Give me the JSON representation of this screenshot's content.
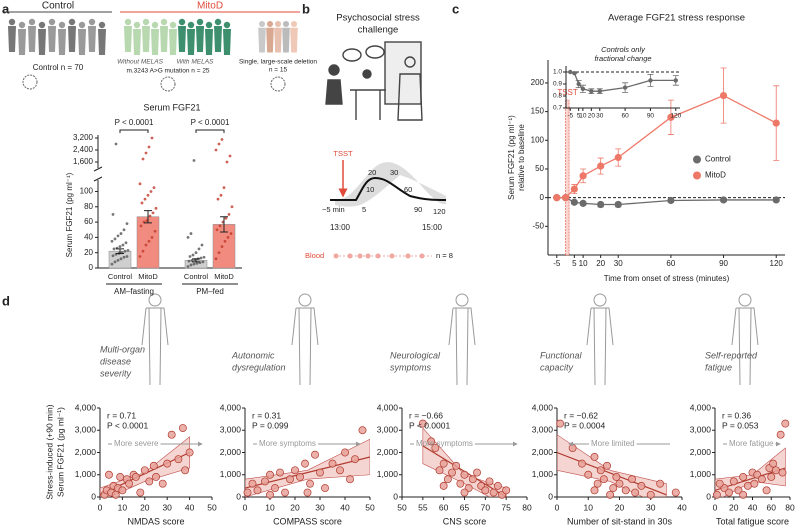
{
  "panel_labels": [
    "a",
    "b",
    "c",
    "d"
  ],
  "cohorts": {
    "control_header": "Control",
    "mitod_header": "MitoD",
    "control_n": "Control n = 70",
    "melas_without": "Without MELAS",
    "melas_with": "With MELAS",
    "mutation": "m.3243 A>G mutation n = 25",
    "deletion_lines": [
      "Single, large-scale deletion",
      "n = 15"
    ]
  },
  "stress_test": {
    "title_lines": [
      "Psychosocial stress",
      "challenge"
    ],
    "event": "TSST",
    "time_labels": [
      "−5 min",
      "5",
      "10",
      "20",
      "30",
      "60",
      "90",
      "120"
    ],
    "start": "13:00",
    "end": "15:00",
    "sample_row": "Blood",
    "n": "n = 8"
  },
  "chart_data": [
    {
      "type": "bar",
      "title": "Serum FGF21",
      "ylabel": "Serum FGF21 (pg ml⁻¹)",
      "categories": [
        "Control",
        "MitoD",
        "Control",
        "MitoD"
      ],
      "groups": [
        "AM–fasting",
        "PM–fed"
      ],
      "values": [
        22,
        67,
        10,
        57
      ],
      "errors": [
        3,
        8,
        2,
        10
      ],
      "colors": [
        "#cfcfcf",
        "#f28b7f",
        "#cfcfcf",
        "#f28b7f"
      ],
      "point_colors": [
        "#555555",
        "#c0392b",
        "#555555",
        "#c0392b"
      ],
      "points": [
        [
          5,
          8,
          10,
          12,
          14,
          15,
          16,
          18,
          19,
          20,
          22,
          23,
          25,
          26,
          28,
          30,
          33,
          35,
          38,
          42,
          45,
          50,
          58,
          70,
          2800
        ],
        [
          15,
          22,
          30,
          35,
          40,
          48,
          55,
          60,
          62,
          68,
          72,
          78,
          85,
          90,
          95,
          100,
          105,
          110,
          1800,
          2200,
          2600,
          3200
        ],
        [
          2,
          4,
          5,
          6,
          7,
          8,
          9,
          10,
          11,
          12,
          13,
          14,
          15,
          17,
          20,
          25,
          30,
          40,
          45,
          1700
        ],
        [
          12,
          20,
          28,
          35,
          40,
          45,
          50,
          55,
          60,
          65,
          70,
          80,
          90,
          95,
          105,
          1600,
          2000,
          2400,
          2800,
          3100
        ]
      ],
      "p_labels": [
        "P < 0.0001",
        "P < 0.0001"
      ],
      "ylim": [
        0,
        115
      ],
      "yticks": [
        0,
        20,
        40,
        60,
        80,
        100
      ],
      "break_ylim": [
        1200,
        3400
      ],
      "break_yticks": [
        {
          "value": 1600,
          "label": "1,600"
        },
        {
          "value": 2400,
          "label": "2,400"
        },
        {
          "value": 3200,
          "label": "3,200"
        }
      ]
    },
    {
      "type": "line",
      "title": "Average FGF21 stress response",
      "xlabel": "Time from onset of stress (minutes)",
      "ylabel_lines": [
        "Serum FGF21 (pg ml⁻¹)",
        "relative to baseline"
      ],
      "x": [
        -5,
        0,
        5,
        10,
        20,
        30,
        60,
        90,
        120
      ],
      "series": [
        {
          "name": "Control",
          "color": "#6b6b6b",
          "values": [
            0,
            0,
            -8,
            -10,
            -12,
            -12,
            -5,
            -4,
            -4
          ],
          "errors": [
            0,
            0,
            3,
            3,
            4,
            4,
            3,
            3,
            3
          ]
        },
        {
          "name": "MitoD",
          "color": "#ee7868",
          "values": [
            0,
            0,
            15,
            38,
            55,
            70,
            140,
            178,
            130
          ],
          "errors": [
            0,
            0,
            8,
            12,
            14,
            15,
            30,
            48,
            65
          ]
        }
      ],
      "xlim": [
        -10,
        125
      ],
      "xticks": [
        -5,
        5,
        10,
        20,
        30,
        60,
        90,
        120
      ],
      "ylim": [
        -100,
        240
      ],
      "yticks": [
        -50,
        0,
        50,
        100,
        150,
        200
      ],
      "reference_line": 0,
      "event": {
        "label": "TSST",
        "x": [
          0,
          2
        ]
      },
      "legend": "right"
    },
    {
      "type": "line",
      "title_lines": [
        "Controls only",
        "fractional change"
      ],
      "x": [
        -5,
        0,
        5,
        10,
        20,
        30,
        60,
        90,
        120
      ],
      "series": [
        {
          "color": "#6b6b6b",
          "values": [
            1,
            0.99,
            0.9,
            0.86,
            0.84,
            0.84,
            0.87,
            0.93,
            0.93
          ],
          "errors": [
            0,
            0,
            0.03,
            0.03,
            0.02,
            0.02,
            0.04,
            0.05,
            0.04
          ]
        }
      ],
      "xlim": [
        -10,
        125
      ],
      "xticks": [
        -5,
        5,
        10,
        20,
        30,
        60,
        90,
        120
      ],
      "ylim": [
        0.7,
        1.05
      ],
      "yticks": [
        0.7,
        0.8,
        0.9,
        {
          "value": 1,
          "label": "1.0"
        }
      ],
      "reference_line": 1
    },
    {
      "type": "scatter",
      "caption_lines": [
        "Multi-organ",
        "disease",
        "severity"
      ],
      "r_label": "r = 0.71",
      "p_label": "P < 0.0001",
      "direction_label": "More severe",
      "arrow": "right",
      "xlabel": "NMDAS score",
      "ylabel_lines": [
        "Stress-induced (+90 min)",
        "Serum FGF21 (pg ml⁻¹)"
      ],
      "x": [
        2,
        3,
        5,
        6,
        8,
        9,
        10,
        12,
        13,
        15,
        16,
        18,
        20,
        22,
        24,
        25,
        28,
        30,
        32,
        35,
        37,
        38,
        40,
        4,
        7
      ],
      "y": [
        100,
        300,
        200,
        500,
        400,
        900,
        300,
        800,
        600,
        1000,
        900,
        200,
        1200,
        700,
        1400,
        900,
        600,
        1500,
        2800,
        1700,
        3100,
        1200,
        2000,
        1000,
        100
      ],
      "fit": {
        "x": [
          0,
          40
        ],
        "y": [
          100,
          2000
        ]
      },
      "band": {
        "x": [
          0,
          20,
          40
        ],
        "lower": [
          -200,
          700,
          1300
        ],
        "upper": [
          400,
          1100,
          2700
        ]
      },
      "color": "#e8a29a",
      "xlim": [
        0,
        50
      ],
      "xticks": [
        0,
        10,
        20,
        30,
        40,
        50
      ],
      "ylim": [
        0,
        4000
      ],
      "yticks": [
        0,
        {
          "value": 1000,
          "label": "1,000"
        },
        {
          "value": 2000,
          "label": "2,000"
        },
        {
          "value": 3000,
          "label": "3,000"
        },
        {
          "value": 4000,
          "label": "4,000"
        }
      ]
    },
    {
      "type": "scatter",
      "caption_lines": [
        "Autonomic",
        "dysregulation"
      ],
      "r_label": "r = 0.31",
      "p_label": "P = 0.099",
      "direction_label": "More symptoms",
      "arrow": "right",
      "xlabel": "COMPASS score",
      "x": [
        1,
        3,
        5,
        8,
        10,
        12,
        14,
        16,
        18,
        20,
        22,
        24,
        26,
        28,
        30,
        32,
        35,
        38,
        40,
        42,
        44,
        47,
        10,
        25
      ],
      "y": [
        200,
        600,
        300,
        700,
        1000,
        400,
        1100,
        200,
        800,
        1200,
        900,
        1500,
        600,
        1900,
        1100,
        400,
        1500,
        1200,
        2000,
        800,
        1700,
        3000,
        100,
        200
      ],
      "fit": {
        "x": [
          0,
          50
        ],
        "y": [
          400,
          1800
        ]
      },
      "band": {
        "x": [
          0,
          25,
          50
        ],
        "lower": [
          0,
          800,
          1000
        ],
        "upper": [
          800,
          1200,
          2600
        ]
      },
      "color": "#e8a29a",
      "xlim": [
        0,
        50
      ],
      "xticks": [
        0,
        10,
        20,
        30,
        40,
        50
      ],
      "ylim": [
        0,
        4000
      ],
      "yticks": [
        0,
        {
          "value": 1000,
          "label": "1,000"
        },
        {
          "value": 2000,
          "label": "2,000"
        },
        {
          "value": 3000,
          "label": "3,000"
        },
        {
          "value": 4000,
          "label": "4,000"
        }
      ]
    },
    {
      "type": "scatter",
      "caption_lines": [
        "Neurological",
        "symptoms"
      ],
      "r_label": "r = −0.66",
      "p_label": "P < 0.0001",
      "direction_label": "More symptoms",
      "arrow": "right",
      "xlabel": "CNS score",
      "x": [
        55,
        57,
        58,
        59,
        60,
        61,
        62,
        63,
        64,
        65,
        66,
        67,
        68,
        69,
        70,
        71,
        72,
        73,
        74,
        75,
        60,
        65
      ],
      "y": [
        3300,
        2500,
        2200,
        1200,
        1500,
        800,
        1100,
        1400,
        600,
        1000,
        400,
        800,
        1100,
        500,
        300,
        700,
        200,
        500,
        100,
        300,
        500,
        200
      ],
      "fit": {
        "x": [
          55,
          75
        ],
        "y": [
          2300,
          0
        ]
      },
      "band": {
        "x": [
          55,
          65,
          75
        ],
        "lower": [
          1500,
          600,
          -400
        ],
        "upper": [
          3100,
          1000,
          400
        ]
      },
      "color": "#e8a29a",
      "xlim": [
        50,
        80
      ],
      "xticks": [
        50,
        55,
        60,
        65,
        70,
        75,
        80
      ],
      "ylim": [
        0,
        4000
      ],
      "yticks": [
        0,
        {
          "value": 1000,
          "label": "1,000"
        },
        {
          "value": 2000,
          "label": "2,000"
        },
        {
          "value": 3000,
          "label": "3,000"
        },
        {
          "value": 4000,
          "label": "4,000"
        }
      ]
    },
    {
      "type": "scatter",
      "caption_lines": [
        "Functional",
        "capacity"
      ],
      "r_label": "r = −0.62",
      "p_label": "P = 0.0004",
      "direction_label": "More limited",
      "arrow": "left",
      "xlabel": "Number of sit-stand in 30s",
      "x": [
        1,
        5,
        8,
        10,
        12,
        13,
        14,
        15,
        16,
        18,
        19,
        20,
        22,
        24,
        25,
        27,
        30,
        33,
        38,
        12,
        17
      ],
      "y": [
        3300,
        2200,
        1500,
        1000,
        1800,
        600,
        1200,
        800,
        1400,
        400,
        900,
        600,
        300,
        800,
        200,
        500,
        100,
        600,
        200,
        300,
        100
      ],
      "fit": {
        "x": [
          0,
          35
        ],
        "y": [
          2000,
          100
        ]
      },
      "band": {
        "x": [
          0,
          17,
          35
        ],
        "lower": [
          1200,
          700,
          -500
        ],
        "upper": [
          2800,
          1200,
          600
        ]
      },
      "color": "#e8a29a",
      "xlim": [
        0,
        40
      ],
      "xticks": [
        0,
        10,
        20,
        30,
        40
      ],
      "ylim": [
        0,
        4000
      ],
      "yticks": [
        0,
        {
          "value": 1000,
          "label": "1,000"
        },
        {
          "value": 2000,
          "label": "2,000"
        },
        {
          "value": 3000,
          "label": "3,000"
        },
        {
          "value": 4000,
          "label": "4,000"
        }
      ]
    },
    {
      "type": "scatter",
      "caption_lines": [
        "Self-reported",
        "fatigue"
      ],
      "r_label": "r = 0.36",
      "p_label": "P = 0.053",
      "direction_label": "More fatigue",
      "arrow": "right",
      "xlabel": "Total fatigue score",
      "x": [
        2,
        10,
        15,
        20,
        25,
        30,
        35,
        40,
        42,
        45,
        50,
        55,
        58,
        60,
        62,
        65,
        70,
        72,
        75,
        5,
        30
      ],
      "y": [
        100,
        400,
        200,
        700,
        300,
        900,
        500,
        1100,
        600,
        1000,
        800,
        300,
        1300,
        900,
        1500,
        1200,
        2800,
        1100,
        3300,
        600,
        100
      ],
      "fit": {
        "x": [
          0,
          75
        ],
        "y": [
          300,
          1300
        ]
      },
      "band": {
        "x": [
          0,
          40,
          75
        ],
        "lower": [
          -200,
          700,
          500
        ],
        "upper": [
          800,
          1000,
          2200
        ]
      },
      "color": "#e8a29a",
      "xlim": [
        0,
        80
      ],
      "xticks": [
        0,
        20,
        40,
        60,
        80
      ],
      "ylim": [
        0,
        4000
      ],
      "yticks": [
        0,
        {
          "value": 1000,
          "label": "1,000"
        },
        {
          "value": 2000,
          "label": "2,000"
        },
        {
          "value": 3000,
          "label": "3,000"
        },
        {
          "value": 4000,
          "label": "4,000"
        }
      ]
    }
  ]
}
